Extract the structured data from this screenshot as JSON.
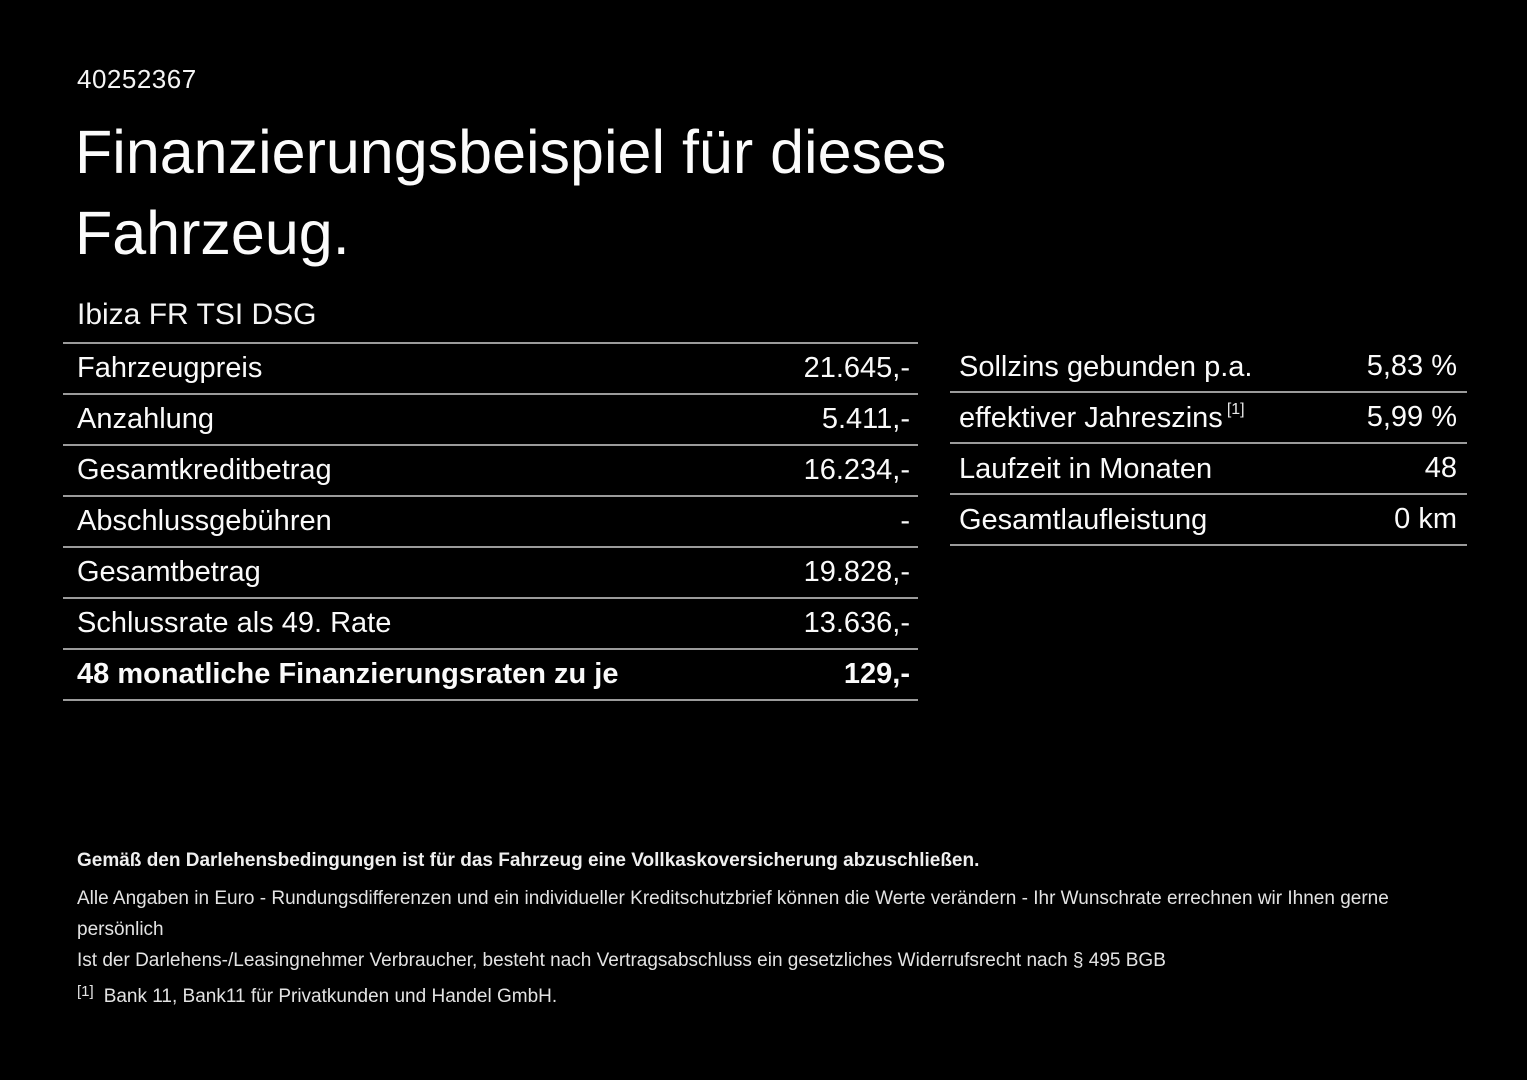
{
  "page": {
    "id_number": "40252367",
    "title_line1": "Finanzierungsbeispiel für dieses",
    "title_line2": "Fahrzeug.",
    "vehicle_model": "Ibiza FR TSI DSG"
  },
  "finance_table": {
    "rows": [
      {
        "label": "Fahrzeugpreis",
        "value": "21.645,-"
      },
      {
        "label": "Anzahlung",
        "value": "5.411,-"
      },
      {
        "label": "Gesamtkreditbetrag",
        "value": "16.234,-"
      },
      {
        "label": "Abschlussgebühren",
        "value": "-"
      },
      {
        "label": "Gesamtbetrag",
        "value": "19.828,-"
      },
      {
        "label": "Schlussrate als 49. Rate",
        "value": "13.636,-"
      },
      {
        "label": "48 monatliche Finanzierungsraten zu je",
        "value": "129,-"
      }
    ]
  },
  "conditions_table": {
    "rows": [
      {
        "label": "Sollzins gebunden p.a.",
        "sup": "",
        "value": "5,83 %"
      },
      {
        "label": "effektiver Jahreszins",
        "sup": "[1]",
        "value": "5,99 %"
      },
      {
        "label": "Laufzeit in Monaten",
        "sup": "",
        "value": "48"
      },
      {
        "label": "Gesamtlaufleistung",
        "sup": "",
        "value": "0 km"
      }
    ]
  },
  "fine_print": {
    "bold_note": "Gemäß den Darlehensbedingungen ist für das Fahrzeug eine Vollkaskoversicherung abzuschließen.",
    "note1": "Alle Angaben in Euro - Rundungsdifferenzen und ein individueller Kreditschutzbrief können die Werte verändern - Ihr Wunschrate errechnen wir Ihnen gerne persönlich",
    "note2": "Ist der Darlehens-/Leasingnehmer Verbraucher, besteht nach Vertragsabschluss ein gesetzliches Widerrufsrecht nach § 495 BGB",
    "footnote_marker": "[1]",
    "footnote_text": "Bank 11, Bank11 für Privatkunden und Handel GmbH."
  },
  "colors": {
    "background": "#000000",
    "text": "#fafafa",
    "fine_print_text": "#e3e3e3",
    "divider": "#9b9b9b"
  }
}
